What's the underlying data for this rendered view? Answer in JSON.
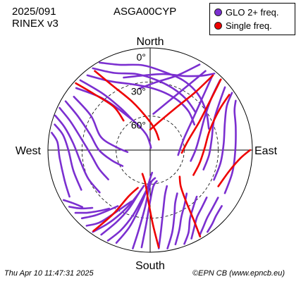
{
  "header": {
    "date": "2025/091",
    "format": "RINEX v3",
    "station": "ASGA00CYP"
  },
  "footer": {
    "timestamp": "Thu Apr 10 11:47:31 2025",
    "credit": "©EPN CB (www.epncb.eu)"
  },
  "colors": {
    "glo": "#7b2fd0",
    "single": "#ee0000"
  },
  "chart_data": {
    "type": "skyplot",
    "direction_labels": {
      "north": "North",
      "south": "South",
      "east": "East",
      "west": "West"
    },
    "elevation_rings": [
      {
        "elevation": 0,
        "label": "0°"
      },
      {
        "elevation": 30,
        "label": "30°"
      },
      {
        "elevation": 60,
        "label": "60°"
      }
    ],
    "legend": [
      {
        "key": "glo",
        "label": "GLO 2+ freq."
      },
      {
        "key": "single",
        "label": "Single freq."
      }
    ],
    "series": [
      {
        "name": "GLO 2+ freq.",
        "key": "glo",
        "tracks": [
          [
            [
              310,
              5
            ],
            [
              318,
              30
            ],
            [
              330,
              60
            ],
            [
              345,
              75
            ],
            [
              0,
              85
            ],
            [
              20,
              88
            ]
          ],
          [
            [
              315,
              3
            ],
            [
              320,
              25
            ],
            [
              325,
              45
            ],
            [
              330,
              60
            ]
          ],
          [
            [
              305,
              8
            ],
            [
              300,
              30
            ],
            [
              285,
              45
            ],
            [
              275,
              60
            ],
            [
              265,
              70
            ]
          ],
          [
            [
              300,
              4
            ],
            [
              295,
              20
            ],
            [
              285,
              35
            ],
            [
              270,
              45
            ],
            [
              255,
              55
            ],
            [
              240,
              62
            ]
          ],
          [
            [
              295,
              2
            ],
            [
              290,
              15
            ],
            [
              280,
              28
            ],
            [
              265,
              38
            ],
            [
              250,
              42
            ],
            [
              235,
              45
            ]
          ],
          [
            [
              290,
              1
            ],
            [
              285,
              12
            ],
            [
              275,
              22
            ],
            [
              260,
              28
            ],
            [
              245,
              30
            ],
            [
              230,
              32
            ]
          ],
          [
            [
              285,
              3
            ],
            [
              280,
              12
            ],
            [
              270,
              18
            ],
            [
              255,
              20
            ],
            [
              240,
              20
            ]
          ],
          [
            [
              280,
              2
            ],
            [
              275,
              8
            ],
            [
              265,
              10
            ],
            [
              250,
              10
            ],
            [
              240,
              8
            ]
          ],
          [
            [
              320,
              4
            ],
            [
              330,
              20
            ],
            [
              345,
              30
            ],
            [
              0,
              35
            ],
            [
              15,
              38
            ],
            [
              30,
              40
            ],
            [
              45,
              42
            ],
            [
              60,
              45
            ]
          ],
          [
            [
              325,
              2
            ],
            [
              335,
              15
            ],
            [
              350,
              22
            ],
            [
              5,
              28
            ],
            [
              20,
              32
            ],
            [
              35,
              35
            ],
            [
              50,
              38
            ]
          ],
          [
            [
              330,
              1
            ],
            [
              340,
              10
            ],
            [
              355,
              15
            ],
            [
              10,
              20
            ],
            [
              25,
              22
            ],
            [
              40,
              25
            ],
            [
              55,
              30
            ],
            [
              70,
              35
            ]
          ],
          [
            [
              200,
              3
            ],
            [
              195,
              20
            ],
            [
              190,
              40
            ],
            [
              185,
              55
            ],
            [
              180,
              65
            ],
            [
              175,
              70
            ]
          ],
          [
            [
              205,
              2
            ],
            [
              200,
              15
            ],
            [
              195,
              30
            ],
            [
              190,
              45
            ],
            [
              185,
              55
            ],
            [
              180,
              60
            ]
          ],
          [
            [
              210,
              4
            ],
            [
              205,
              20
            ],
            [
              200,
              35
            ],
            [
              195,
              50
            ],
            [
              190,
              58
            ]
          ],
          [
            [
              215,
              2
            ],
            [
              210,
              15
            ],
            [
              205,
              28
            ],
            [
              200,
              40
            ],
            [
              195,
              50
            ]
          ],
          [
            [
              220,
              3
            ],
            [
              215,
              12
            ],
            [
              210,
              25
            ],
            [
              205,
              35
            ],
            [
              200,
              42
            ]
          ],
          [
            [
              225,
              5
            ],
            [
              220,
              15
            ],
            [
              215,
              25
            ],
            [
              210,
              33
            ]
          ],
          [
            [
              230,
              4
            ],
            [
              225,
              12
            ],
            [
              220,
              20
            ],
            [
              215,
              27
            ]
          ],
          [
            [
              235,
              3
            ],
            [
              230,
              10
            ],
            [
              225,
              18
            ]
          ],
          [
            [
              240,
              2
            ],
            [
              235,
              8
            ],
            [
              230,
              12
            ]
          ],
          [
            [
              190,
              2
            ],
            [
              188,
              20
            ],
            [
              185,
              40
            ],
            [
              182,
              55
            ],
            [
              178,
              62
            ],
            [
              170,
              65
            ]
          ],
          [
            [
              185,
              4
            ],
            [
              183,
              25
            ],
            [
              180,
              45
            ],
            [
              175,
              58
            ],
            [
              168,
              62
            ]
          ],
          [
            [
              175,
              3
            ],
            [
              172,
              20
            ],
            [
              168,
              35
            ],
            [
              162,
              48
            ],
            [
              155,
              55
            ]
          ],
          [
            [
              170,
              2
            ],
            [
              165,
              15
            ],
            [
              160,
              28
            ],
            [
              155,
              38
            ],
            [
              148,
              45
            ]
          ],
          [
            [
              165,
              4
            ],
            [
              160,
              15
            ],
            [
              155,
              25
            ],
            [
              148,
              33
            ],
            [
              140,
              40
            ]
          ],
          [
            [
              160,
              2
            ],
            [
              155,
              10
            ],
            [
              150,
              20
            ],
            [
              143,
              27
            ],
            [
              135,
              32
            ]
          ],
          [
            [
              155,
              4
            ],
            [
              150,
              12
            ],
            [
              145,
              18
            ],
            [
              138,
              22
            ],
            [
              130,
              25
            ]
          ],
          [
            [
              150,
              3
            ],
            [
              145,
              8
            ],
            [
              140,
              12
            ],
            [
              133,
              15
            ],
            [
              125,
              17
            ]
          ],
          [
            [
              145,
              2
            ],
            [
              140,
              5
            ],
            [
              135,
              8
            ],
            [
              128,
              10
            ]
          ],
          [
            [
              40,
              5
            ],
            [
              45,
              25
            ],
            [
              55,
              45
            ],
            [
              70,
              58
            ],
            [
              85,
              63
            ],
            [
              100,
              65
            ]
          ],
          [
            [
              45,
              3
            ],
            [
              50,
              20
            ],
            [
              60,
              35
            ],
            [
              75,
              45
            ],
            [
              90,
              50
            ],
            [
              105,
              53
            ]
          ],
          [
            [
              50,
              4
            ],
            [
              55,
              15
            ],
            [
              65,
              28
            ],
            [
              80,
              35
            ],
            [
              95,
              38
            ],
            [
              110,
              40
            ]
          ],
          [
            [
              55,
              2
            ],
            [
              60,
              12
            ],
            [
              70,
              20
            ],
            [
              85,
              25
            ],
            [
              100,
              27
            ],
            [
              115,
              28
            ]
          ],
          [
            [
              60,
              3
            ],
            [
              65,
              8
            ],
            [
              75,
              12
            ],
            [
              90,
              15
            ],
            [
              105,
              15
            ],
            [
              120,
              14
            ]
          ],
          [
            [
              35,
              5
            ],
            [
              30,
              25
            ],
            [
              20,
              45
            ],
            [
              5,
              58
            ]
          ],
          [
            [
              30,
              3
            ],
            [
              20,
              20
            ],
            [
              5,
              30
            ],
            [
              350,
              35
            ]
          ],
          [
            [
              40,
              2
            ],
            [
              35,
              10
            ],
            [
              25,
              18
            ],
            [
              10,
              22
            ],
            [
              355,
              24
            ],
            [
              340,
              22
            ]
          ]
        ]
      },
      {
        "name": "Single freq.",
        "key": "single",
        "tracks": [
          [
            [
              325,
              5
            ],
            [
              330,
              25
            ],
            [
              340,
              45
            ],
            [
              355,
              62
            ],
            [
              15,
              72
            ],
            [
              40,
              78
            ]
          ],
          [
            [
              312,
              2
            ],
            [
              315,
              20
            ],
            [
              320,
              40
            ],
            [
              318,
              55
            ]
          ],
          [
            [
              215,
              3
            ],
            [
              210,
              25
            ],
            [
              205,
              45
            ],
            [
              198,
              55
            ]
          ],
          [
            [
              175,
              4
            ],
            [
              178,
              25
            ],
            [
              182,
              45
            ],
            [
              188,
              60
            ],
            [
              198,
              68
            ]
          ],
          [
            [
              150,
              2
            ],
            [
              148,
              18
            ],
            [
              145,
              35
            ],
            [
              140,
              48
            ],
            [
              132,
              55
            ]
          ],
          [
            [
              40,
              4
            ],
            [
              38,
              25
            ],
            [
              32,
              45
            ],
            [
              20,
              62
            ],
            [
              0,
              72
            ]
          ],
          [
            [
              45,
              2
            ],
            [
              50,
              20
            ],
            [
              60,
              40
            ],
            [
              75,
              55
            ],
            [
              95,
              62
            ]
          ],
          [
            [
              55,
              5
            ],
            [
              60,
              20
            ],
            [
              72,
              35
            ],
            [
              88,
              42
            ],
            [
              105,
              45
            ],
            [
              120,
              46
            ]
          ],
          [
            [
              90,
              2
            ],
            [
              95,
              10
            ],
            [
              105,
              18
            ],
            [
              118,
              22
            ]
          ]
        ]
      }
    ]
  }
}
